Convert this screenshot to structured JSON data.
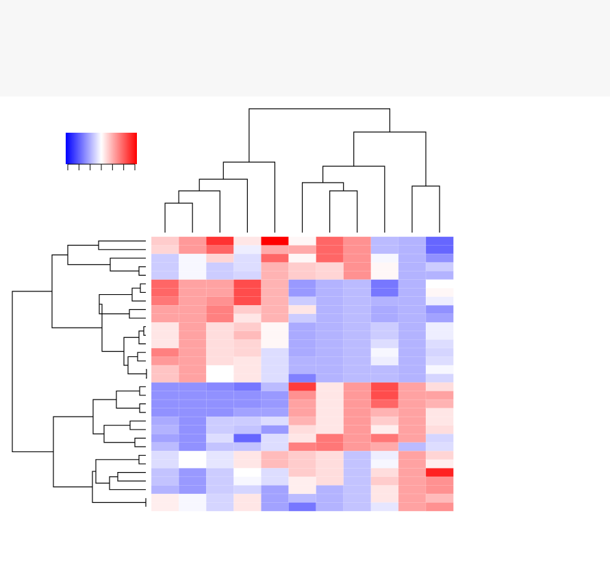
{
  "chart_data": {
    "type": "heatmap",
    "zlim": [
      -3,
      3
    ],
    "zticks": [
      -3,
      -2,
      -1,
      0,
      1,
      2,
      3
    ],
    "colors": [
      "#0000ff",
      "#ffffff",
      "#ff0000"
    ],
    "values": [
      [
        0.6,
        1.2,
        2.4,
        0.3,
        3.0,
        0.1,
        1.8,
        1.3,
        -0.8,
        -0.9,
        -1.8
      ],
      [
        0.5,
        1.2,
        1.8,
        -0.2,
        1.0,
        1.0,
        1.8,
        1.3,
        -0.8,
        -0.9,
        -1.8
      ],
      [
        -0.6,
        -0.1,
        0.5,
        -0.4,
        1.8,
        0.1,
        1.8,
        1.3,
        -0.1,
        -0.9,
        -1.3
      ],
      [
        -0.6,
        -0.1,
        -0.6,
        -0.4,
        0.9,
        0.6,
        0.5,
        1.3,
        0.1,
        -0.9,
        -0.6
      ],
      [
        -0.6,
        -0.1,
        -0.6,
        -0.5,
        0.9,
        0.6,
        0.5,
        1.3,
        0.1,
        -0.9,
        -0.9
      ],
      [
        1.8,
        1.1,
        1.1,
        2.1,
        0.9,
        -1.2,
        -0.9,
        -0.8,
        -1.6,
        -0.9,
        0.0
      ],
      [
        1.8,
        1.1,
        1.1,
        2.1,
        0.9,
        -1.2,
        -0.9,
        -0.8,
        -1.6,
        -0.9,
        0.1
      ],
      [
        1.6,
        1.1,
        1.3,
        2.1,
        0.9,
        -0.6,
        -0.9,
        -0.8,
        -0.9,
        -0.9,
        -0.2
      ],
      [
        1.1,
        1.1,
        1.5,
        0.6,
        0.9,
        0.3,
        -0.9,
        -0.8,
        -1.0,
        -0.9,
        -1.3
      ],
      [
        1.1,
        1.1,
        1.5,
        0.3,
        0.9,
        -0.6,
        -0.9,
        -0.8,
        -1.0,
        -0.9,
        -1.1
      ],
      [
        0.3,
        1.1,
        0.4,
        0.6,
        0.1,
        -1.0,
        -0.9,
        -0.8,
        -0.6,
        -0.9,
        -0.2
      ],
      [
        0.3,
        1.1,
        0.4,
        0.8,
        0.1,
        -1.0,
        -0.9,
        -0.8,
        -0.6,
        -0.9,
        -0.2
      ],
      [
        0.3,
        1.1,
        0.4,
        0.5,
        0.1,
        -1.0,
        -0.9,
        -0.8,
        -0.4,
        -0.9,
        -0.4
      ],
      [
        1.5,
        1.1,
        0.4,
        0.5,
        -0.4,
        -1.0,
        -0.9,
        -0.8,
        -0.1,
        -0.9,
        -0.5
      ],
      [
        1.2,
        1.1,
        0.4,
        0.3,
        -0.4,
        -0.9,
        -0.9,
        -0.8,
        -0.2,
        -0.9,
        -0.4
      ],
      [
        0.7,
        1.1,
        0.0,
        0.3,
        -0.4,
        -0.9,
        -0.9,
        -0.8,
        -0.8,
        -0.9,
        -0.1
      ],
      [
        0.7,
        1.1,
        0.0,
        0.3,
        -0.4,
        -1.5,
        -0.9,
        -0.8,
        -0.8,
        -0.9,
        -0.5
      ],
      [
        -1.3,
        -1.3,
        -1.4,
        -1.6,
        -0.8,
        2.3,
        0.3,
        1.2,
        2.1,
        1.1,
        0.4
      ],
      [
        -1.3,
        -1.3,
        -1.3,
        -1.3,
        -1.2,
        1.3,
        0.3,
        1.2,
        2.1,
        1.1,
        1.1
      ],
      [
        -1.3,
        -1.3,
        -1.3,
        -1.3,
        -1.2,
        1.1,
        0.3,
        1.2,
        1.8,
        1.1,
        0.9
      ],
      [
        -1.3,
        -1.3,
        -1.3,
        -1.1,
        -1.1,
        1.1,
        0.3,
        1.2,
        0.9,
        1.1,
        0.3
      ],
      [
        -1.0,
        -1.3,
        -0.6,
        -0.6,
        -0.4,
        0.9,
        0.3,
        1.2,
        0.6,
        1.1,
        0.3
      ],
      [
        -0.9,
        -1.3,
        -0.6,
        -0.7,
        -1.2,
        0.4,
        0.3,
        1.2,
        0.2,
        1.1,
        0.4
      ],
      [
        -1.1,
        -1.3,
        -0.4,
        -1.8,
        -0.4,
        0.3,
        1.6,
        1.2,
        1.6,
        1.1,
        -0.5
      ],
      [
        -0.8,
        -1.3,
        -0.7,
        -0.7,
        -0.4,
        1.5,
        1.6,
        1.2,
        1.0,
        -0.8,
        -0.4
      ],
      [
        -0.4,
        0.0,
        -0.3,
        0.3,
        0.8,
        0.6,
        0.4,
        -0.7,
        -0.2,
        1.1,
        0.5
      ],
      [
        -0.4,
        0.0,
        -0.3,
        0.3,
        0.8,
        0.6,
        0.4,
        -0.7,
        -0.1,
        1.1,
        0.2
      ],
      [
        -0.7,
        -1.2,
        -0.6,
        0.0,
        -0.4,
        0.6,
        0.4,
        -0.7,
        0.4,
        1.1,
        2.6
      ],
      [
        -0.7,
        -1.2,
        -0.6,
        -0.1,
        -0.4,
        0.2,
        0.4,
        -0.7,
        0.6,
        1.1,
        1.3
      ],
      [
        -0.9,
        -1.2,
        -0.6,
        -0.5,
        -1.1,
        0.2,
        -0.9,
        -0.7,
        0.3,
        1.1,
        1.3
      ],
      [
        0.2,
        -0.1,
        -0.5,
        0.3,
        -1.1,
        -0.8,
        -0.9,
        -0.7,
        0.3,
        1.1,
        0.8
      ],
      [
        0.2,
        -0.1,
        -0.5,
        0.3,
        -1.1,
        -1.6,
        -0.9,
        -0.7,
        -0.3,
        1.1,
        1.3
      ]
    ]
  }
}
